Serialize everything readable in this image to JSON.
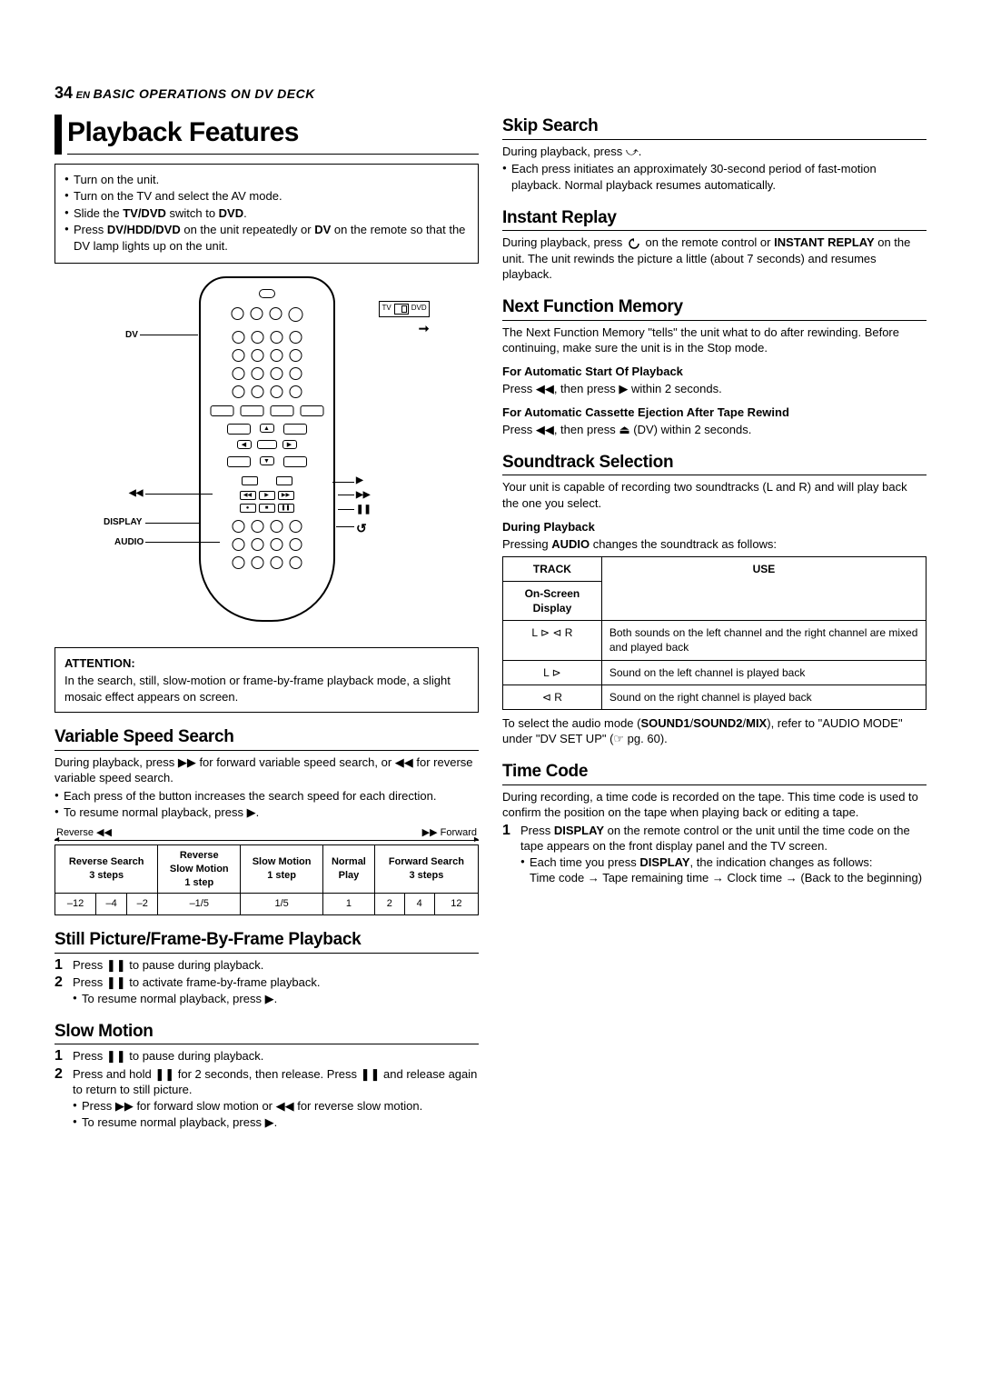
{
  "header": {
    "page_number": "34",
    "lang": "EN",
    "section": "BASIC OPERATIONS ON DV DECK"
  },
  "left": {
    "title": "Playback Features",
    "prep": [
      "Turn on the unit.",
      "Turn on the TV and select the AV mode.",
      "Slide the <b>TV/DVD</b> switch to <b>DVD</b>.",
      "Press <b>DV/HDD/DVD</b> on the unit repeatedly or <b>DV</b> on the remote so that the DV lamp lights up on the unit."
    ],
    "remote_labels": {
      "dv": "DV",
      "rew": "◀◀",
      "fwd": "▶▶",
      "play": "▶",
      "pause": "❚❚",
      "display": "DISPLAY",
      "audio": "AUDIO",
      "loop": "↺",
      "tv": "TV",
      "dvd": "DVD"
    },
    "attention": {
      "title": "ATTENTION:",
      "text": "In the search, still, slow-motion or frame-by-frame playback mode, a slight mosaic effect appears on screen."
    },
    "vss": {
      "title": "Variable Speed Search",
      "p1": "During playback, press ▶▶ for forward variable speed search, or ◀◀ for reverse variable speed search.",
      "b1": "Each press of the button increases the search speed for each direction.",
      "b2": "To resume normal playback, press ▶.",
      "arr_rev": "Reverse ◀◀",
      "arr_fwd": "▶▶ Forward",
      "headers": [
        "Reverse Search\n3 steps",
        "Reverse\nSlow Motion\n1 step",
        "Slow Motion\n1 step",
        "Normal\nPlay",
        "Forward Search\n3 steps"
      ],
      "row": [
        "–12",
        "–4",
        "–2",
        "–1/5",
        "1/5",
        "1",
        "2",
        "4",
        "12"
      ]
    },
    "still": {
      "title": "Still Picture/Frame-By-Frame Playback",
      "s1": "Press ❚❚ to pause during playback.",
      "s2": "Press ❚❚ to activate frame-by-frame playback.",
      "b1": "To resume normal playback, press ▶."
    },
    "slow": {
      "title": "Slow Motion",
      "s1": "Press ❚❚ to pause during playback.",
      "s2": "Press and hold ❚❚ for 2 seconds, then release. Press ❚❚ and release again to return to still picture.",
      "b1": "Press ▶▶ for forward slow motion or ◀◀ for reverse slow motion.",
      "b2": "To resume normal playback, press ▶."
    }
  },
  "right": {
    "skip": {
      "title": "Skip Search",
      "p1": "During playback, press ⤻.",
      "b1": "Each press initiates an approximately 30-second period of fast-motion playback. Normal playback resumes automatically."
    },
    "instant": {
      "title": "Instant Replay",
      "p1_pre": "During playback, press ",
      "p1_post": " on the remote control or <b>INSTANT REPLAY</b> on the unit. The unit rewinds the picture a little (about 7 seconds) and resumes playback."
    },
    "nfm": {
      "title": "Next Function Memory",
      "p1": "The Next Function Memory \"tells\" the unit what to do after rewinding. Before continuing, make sure the unit is in the Stop mode.",
      "h1": "For Automatic Start Of Playback",
      "p2": "Press ◀◀, then press ▶ within 2 seconds.",
      "h2": "For Automatic Cassette Ejection After Tape Rewind",
      "p3": "Press ◀◀, then press ⏏ (DV) within 2 seconds."
    },
    "sound": {
      "title": "Soundtrack Selection",
      "p1": "Your unit is capable of recording two soundtracks (L and R) and will play back the one you select.",
      "h1": "During Playback",
      "p2": "Pressing <b>AUDIO</b> changes the soundtrack as follows:",
      "th_track": "TRACK",
      "th_use": "USE",
      "th_osd": "On-Screen Display",
      "rows": [
        {
          "track": "L ⊳  ⊲ R",
          "use": "Both sounds on the left channel and the right channel are mixed and played back"
        },
        {
          "track": "L ⊳",
          "use": "Sound on the left channel is played back"
        },
        {
          "track": "⊲ R",
          "use": "Sound on the right channel is played back"
        }
      ],
      "p3": "To select the audio mode (<b>SOUND1</b>/<b>SOUND2</b>/<b>MIX</b>), refer to \"AUDIO MODE\" under \"DV SET UP\" (☞ pg. 60)."
    },
    "timecode": {
      "title": "Time Code",
      "p1": "During recording, a time code is recorded on the tape. This time code is used to confirm the position on the tape when playing back or editing a tape.",
      "s1": "Press <b>DISPLAY</b> on the remote control or the unit until the time code on the tape appears on the front display panel and the TV screen.",
      "b1": "Each time you press <b>DISPLAY</b>, the indication changes as follows:",
      "seq": "Time code → Tape remaining time → Clock time → (Back to the beginning)"
    }
  }
}
